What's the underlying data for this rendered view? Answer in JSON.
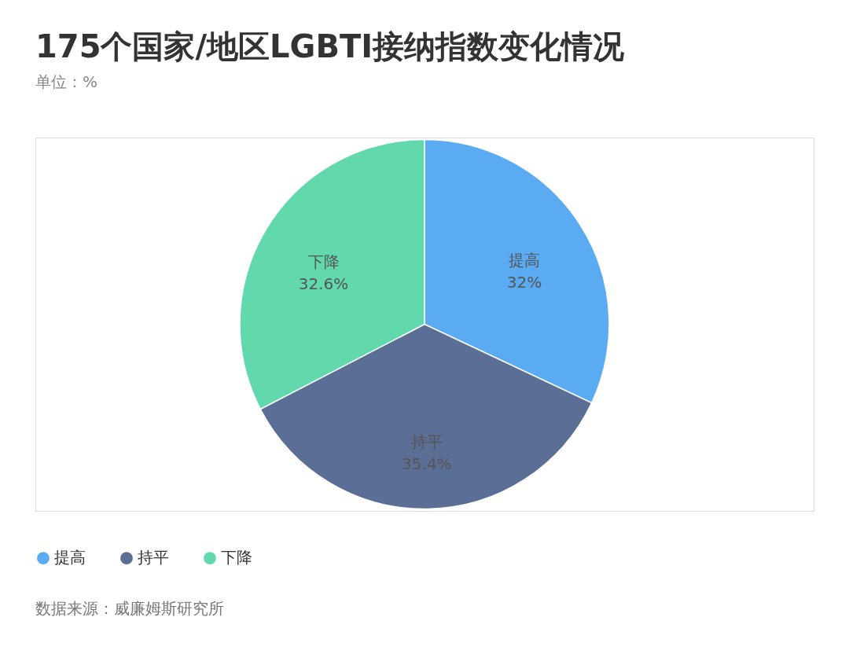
{
  "chart_data": {
    "type": "pie",
    "title": "175个国家/地区LGBTI接纳指数变化情况",
    "subtitle": "单位：%",
    "categories": [
      "提高",
      "持平",
      "下降"
    ],
    "values": [
      32,
      35.4,
      32.6
    ],
    "value_labels": [
      "32%",
      "35.4%",
      "32.6%"
    ],
    "colors": [
      "#5aabf2",
      "#5b6e96",
      "#61d9ac"
    ],
    "legend": "bottom",
    "annotations": [
      "数据来源：威廉姆斯研究所"
    ]
  }
}
